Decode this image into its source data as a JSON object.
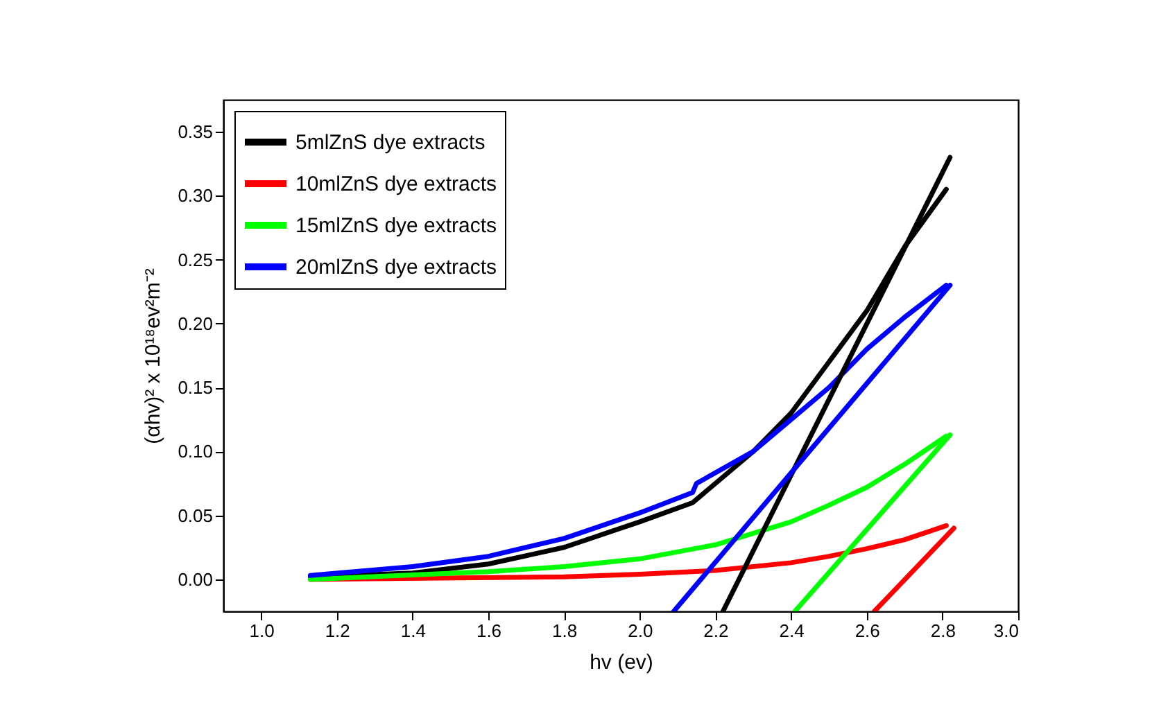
{
  "chart_data": {
    "type": "line",
    "xlabel": "hv (ev)",
    "ylabel": "(αhv)² x 10¹⁸ev²m⁻²",
    "xlim": [
      0.9,
      3.0
    ],
    "xticks": [
      {
        "value": 1,
        "label": "1.0"
      },
      1.2,
      1.4,
      1.6,
      1.8,
      {
        "value": 2,
        "label": "2.0"
      },
      2.2,
      2.4,
      2.6,
      2.8,
      {
        "value": 3,
        "label": "3.0"
      }
    ],
    "ylim": [
      -0.025,
      0.375
    ],
    "yticks": [
      {
        "value": 0,
        "label": "0.00"
      },
      0.05,
      {
        "value": 0.1,
        "label": "0.10"
      },
      0.15,
      {
        "value": 0.2,
        "label": "0.20"
      },
      0.25,
      {
        "value": 0.3,
        "label": "0.30"
      },
      0.35
    ],
    "grid": false,
    "legend": "top left",
    "marker": "none",
    "line_style": "solid",
    "series": [
      {
        "name": "5mlZnS dye extracts",
        "color": "#000000",
        "x": [
          1.13,
          1.4,
          1.6,
          1.8,
          2.0,
          2.14,
          2.3,
          2.4,
          2.5,
          2.6,
          2.7,
          2.81
        ],
        "values": [
          0.002,
          0.005,
          0.012,
          0.025,
          0.045,
          0.06,
          0.1,
          0.13,
          0.17,
          0.21,
          0.26,
          0.305
        ]
      },
      {
        "name": "10mlZnS dye extracts",
        "color": "#ff0000",
        "x": [
          1.13,
          1.8,
          2.0,
          2.2,
          2.4,
          2.5,
          2.6,
          2.7,
          2.81
        ],
        "values": [
          0.0,
          0.002,
          0.004,
          0.007,
          0.013,
          0.018,
          0.024,
          0.031,
          0.042
        ]
      },
      {
        "name": "15mlZnS dye extracts",
        "color": "#00ff00",
        "x": [
          1.13,
          1.6,
          1.8,
          2.0,
          2.2,
          2.4,
          2.5,
          2.6,
          2.7,
          2.81
        ],
        "values": [
          0.0,
          0.006,
          0.01,
          0.016,
          0.027,
          0.045,
          0.058,
          0.072,
          0.09,
          0.112
        ]
      },
      {
        "name": "20mlZnS dye extracts",
        "color": "#0000ff",
        "x": [
          1.13,
          1.4,
          1.6,
          1.8,
          2.0,
          2.14,
          2.15,
          2.3,
          2.4,
          2.5,
          2.6,
          2.7,
          2.81
        ],
        "values": [
          0.003,
          0.01,
          0.018,
          0.032,
          0.052,
          0.068,
          0.075,
          0.1,
          0.125,
          0.15,
          0.18,
          0.205,
          0.23
        ]
      },
      {
        "type": "line",
        "color": "#000000",
        "x": [
          2.22,
          2.82
        ],
        "values": [
          -0.025,
          0.33
        ]
      },
      {
        "type": "line",
        "color": "#ff0000",
        "x": [
          2.62,
          2.83
        ],
        "values": [
          -0.025,
          0.04
        ]
      },
      {
        "type": "line",
        "color": "#00ff00",
        "x": [
          2.41,
          2.82
        ],
        "values": [
          -0.025,
          0.113
        ]
      },
      {
        "type": "line",
        "color": "#0000ff",
        "x": [
          2.09,
          2.82
        ],
        "values": [
          -0.025,
          0.23
        ]
      }
    ]
  }
}
